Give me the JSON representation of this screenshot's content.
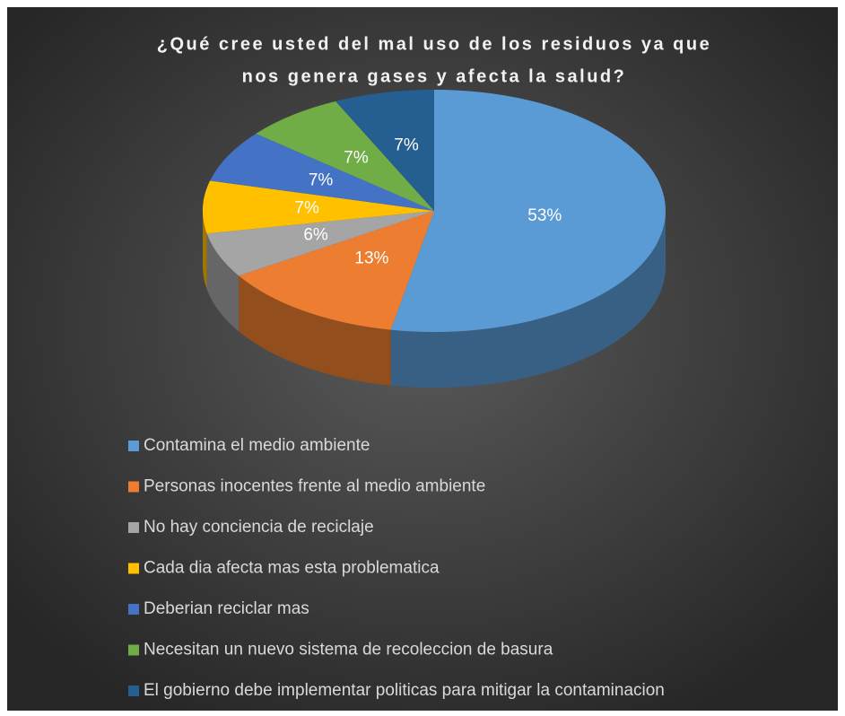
{
  "chart_data": {
    "type": "pie",
    "title": [
      "¿Qué cree usted del mal uso de los residuos ya que",
      "nos genera gases y afecta la salud?"
    ],
    "categories": [
      "Contamina el medio ambiente",
      "Personas inocentes frente al medio ambiente",
      "No hay conciencia de reciclaje",
      "Cada dia afecta mas esta problematica",
      "Deberian reciclar mas",
      "Necesitan un nuevo sistema de recoleccion de basura",
      "El gobierno debe implementar politicas para mitigar la contaminacion"
    ],
    "values": [
      53,
      13,
      6,
      7,
      7,
      7,
      7
    ],
    "value_labels": [
      "53%",
      "13%",
      "6%",
      "7%",
      "7%",
      "7%",
      "7%"
    ],
    "colors": [
      "#5b9bd5",
      "#ed7d31",
      "#a5a5a5",
      "#ffc000",
      "#4472c4",
      "#70ad47",
      "#255e91"
    ],
    "legend": "bottom"
  }
}
